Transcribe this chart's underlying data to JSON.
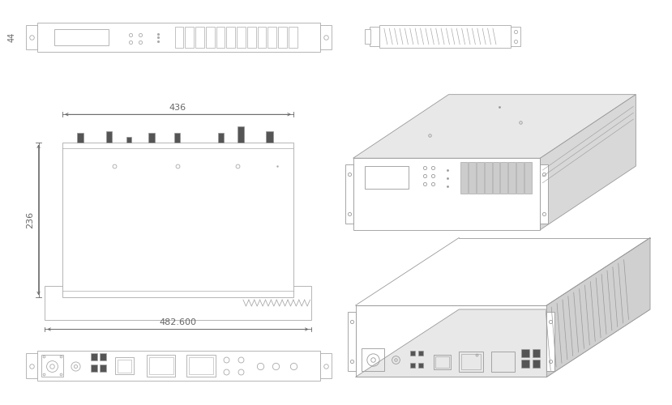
{
  "bg_color": "#ffffff",
  "lc": "#aaaaaa",
  "lc2": "#999999",
  "dc": "#666666",
  "fc_dark": "#555555",
  "fc_mid": "#cccccc",
  "fc_light": "#eeeeee",
  "dim_436": "436",
  "dim_44": "44",
  "dim_236": "236",
  "dim_482": "482.600",
  "lw": 0.6,
  "lw2": 0.5
}
